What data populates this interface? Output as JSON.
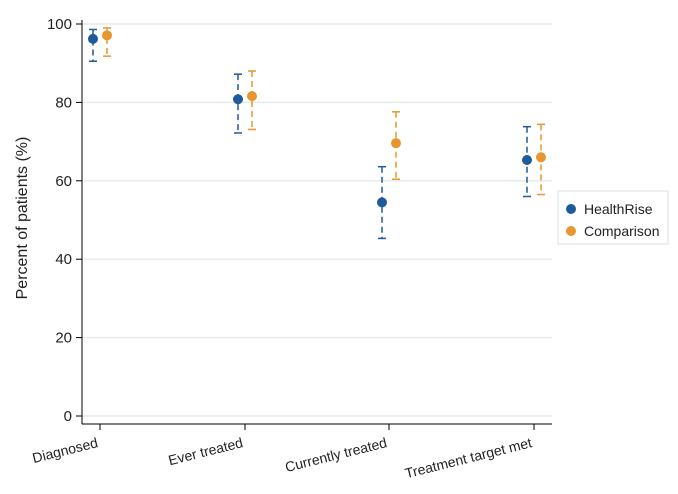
{
  "chart_data": {
    "type": "scatter",
    "title": "",
    "xlabel": "",
    "ylabel": "Percent of patients (%)",
    "ylim": [
      0,
      100
    ],
    "yticks": [
      0,
      20,
      40,
      60,
      80,
      100
    ],
    "grid": true,
    "legend_position": "right",
    "categories": [
      "Diagnosed",
      "Ever treated",
      "Currently treated",
      "Treatment target met"
    ],
    "series": [
      {
        "name": "HealthRise",
        "color": "#1f5a9a",
        "values": [
          96.2,
          80.8,
          54.5,
          65.3
        ],
        "lower": [
          90.5,
          72.2,
          45.3,
          56.0
        ],
        "upper": [
          98.6,
          87.2,
          63.6,
          73.8
        ]
      },
      {
        "name": "Comparison",
        "color": "#e8962d",
        "values": [
          97.1,
          81.6,
          69.6,
          66.0
        ],
        "lower": [
          91.8,
          73.1,
          60.4,
          56.5
        ],
        "upper": [
          99.0,
          88.0,
          77.6,
          74.4
        ]
      }
    ]
  }
}
